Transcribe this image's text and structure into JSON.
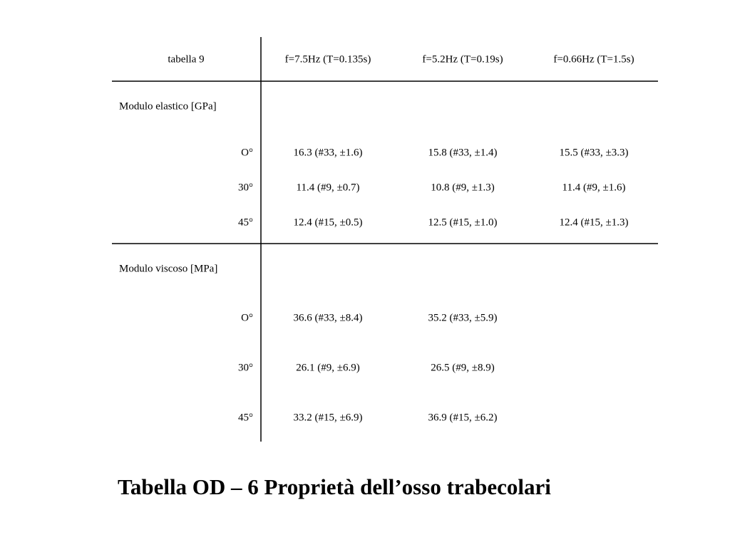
{
  "table": {
    "header": [
      "tabella 9",
      "f=7.5Hz (T=0.135s)",
      "f=5.2Hz (T=0.19s)",
      "f=0.66Hz (T=1.5s)"
    ],
    "sections": [
      {
        "title": "Modulo elastico [GPa]",
        "rows": [
          {
            "label": "O°",
            "cells": [
              "16.3 (#33, ±1.6)",
              "15.8 (#33, ±1.4)",
              "15.5 (#33, ±3.3)"
            ]
          },
          {
            "label": "30°",
            "cells": [
              "11.4 (#9, ±0.7)",
              "10.8 (#9, ±1.3)",
              "11.4 (#9, ±1.6)"
            ]
          },
          {
            "label": "45°",
            "cells": [
              "12.4 (#15, ±0.5)",
              "12.5 (#15, ±1.0)",
              "12.4 (#15, ±1.3)"
            ]
          }
        ]
      },
      {
        "title": "Modulo viscoso [MPa]",
        "rows": [
          {
            "label": "O°",
            "cells": [
              "36.6 (#33, ±8.4)",
              "35.2 (#33, ±5.9)"
            ]
          },
          {
            "label": "30°",
            "cells": [
              "26.1 (#9, ±6.9)",
              "26.5 (#9, ±8.9)"
            ]
          },
          {
            "label": "45°",
            "cells": [
              "33.2 (#15, ±6.9)",
              "36.9 (#15, ±6.2)"
            ]
          }
        ]
      }
    ]
  },
  "caption": "Tabella OD – 6 Proprietà dell’osso trabecolari"
}
